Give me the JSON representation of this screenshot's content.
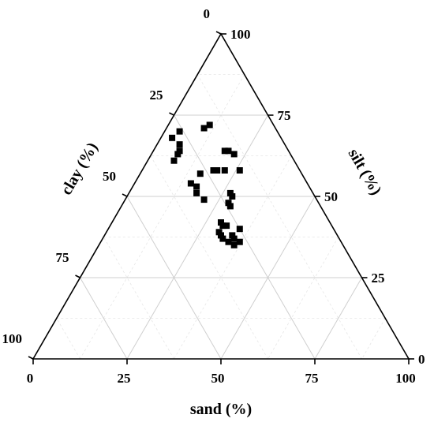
{
  "chart_data": {
    "type": "scatter",
    "subtype": "ternary",
    "title": "",
    "axes": {
      "sand": {
        "label": "sand (%)",
        "ticks": [
          "0",
          "25",
          "50",
          "75",
          "100"
        ],
        "range": [
          0,
          100
        ]
      },
      "silt": {
        "label": "silt (%)",
        "ticks": [
          "0",
          "25",
          "50",
          "75",
          "100"
        ],
        "range": [
          0,
          100
        ]
      },
      "clay": {
        "label": "clay (%)",
        "ticks": [
          "0",
          "25",
          "50",
          "75",
          "100"
        ],
        "range": [
          0,
          100
        ]
      }
    },
    "grid": true,
    "marker": "square",
    "marker_color": "#000000",
    "points": [
      {
        "sand": 10,
        "silt": 71,
        "clay": 19
      },
      {
        "sand": 11,
        "silt": 72,
        "clay": 17
      },
      {
        "sand": 4,
        "silt": 70,
        "clay": 26
      },
      {
        "sand": 3,
        "silt": 68,
        "clay": 29
      },
      {
        "sand": 6,
        "silt": 66,
        "clay": 28
      },
      {
        "sand": 7,
        "silt": 64,
        "clay": 29
      },
      {
        "sand": 7,
        "silt": 63,
        "clay": 30
      },
      {
        "sand": 7,
        "silt": 61,
        "clay": 32
      },
      {
        "sand": 19,
        "silt": 64,
        "clay": 17
      },
      {
        "sand": 20,
        "silt": 64,
        "clay": 16
      },
      {
        "sand": 22,
        "silt": 63,
        "clay": 15
      },
      {
        "sand": 19,
        "silt": 58,
        "clay": 23
      },
      {
        "sand": 20,
        "silt": 58,
        "clay": 22
      },
      {
        "sand": 22,
        "silt": 58,
        "clay": 20
      },
      {
        "sand": 26,
        "silt": 58,
        "clay": 16
      },
      {
        "sand": 16,
        "silt": 57,
        "clay": 27
      },
      {
        "sand": 15,
        "silt": 54,
        "clay": 31
      },
      {
        "sand": 17,
        "silt": 53,
        "clay": 30
      },
      {
        "sand": 18,
        "silt": 51,
        "clay": 31
      },
      {
        "sand": 21,
        "silt": 49,
        "clay": 30
      },
      {
        "sand": 27,
        "silt": 51,
        "clay": 22
      },
      {
        "sand": 28,
        "silt": 50,
        "clay": 22
      },
      {
        "sand": 28,
        "silt": 48,
        "clay": 24
      },
      {
        "sand": 29,
        "silt": 47,
        "clay": 24
      },
      {
        "sand": 29,
        "silt": 42,
        "clay": 29
      },
      {
        "sand": 30,
        "silt": 41,
        "clay": 29
      },
      {
        "sand": 31,
        "silt": 41,
        "clay": 28
      },
      {
        "sand": 30,
        "silt": 39,
        "clay": 31
      },
      {
        "sand": 31,
        "silt": 38,
        "clay": 31
      },
      {
        "sand": 32,
        "silt": 37,
        "clay": 31
      },
      {
        "sand": 34,
        "silt": 36,
        "clay": 30
      },
      {
        "sand": 34,
        "silt": 38,
        "clay": 28
      },
      {
        "sand": 35,
        "silt": 37,
        "clay": 28
      },
      {
        "sand": 35,
        "silt": 40,
        "clay": 25
      },
      {
        "sand": 36,
        "silt": 35,
        "clay": 29
      },
      {
        "sand": 37,
        "silt": 36,
        "clay": 27
      }
    ]
  }
}
